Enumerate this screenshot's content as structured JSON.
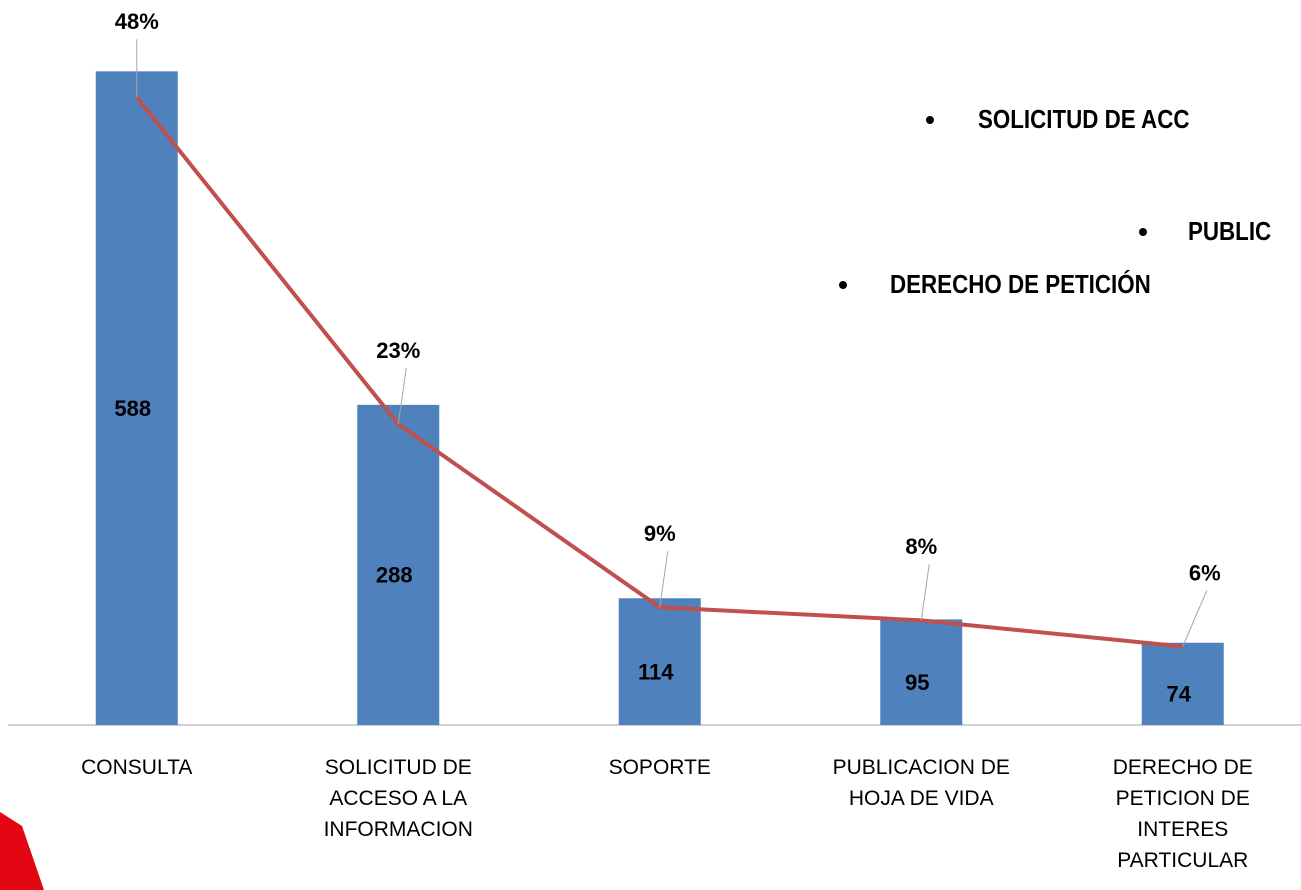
{
  "chart_data": {
    "type": "bar",
    "categories": [
      "CONSULTA",
      "SOLICITUD DE\nACCESO A LA\nINFORMACION",
      "SOPORTE",
      "PUBLICACION DE\nHOJA DE VIDA",
      "DERECHO DE\nPETICION DE\nINTERES\nPARTICULAR"
    ],
    "series": [
      {
        "type": "bar",
        "color": "#4f81bd",
        "values": [
          588,
          288,
          114,
          95,
          74
        ]
      },
      {
        "type": "line",
        "axis": "y2",
        "color": "#c0504d",
        "values": [
          48,
          23,
          9,
          8,
          6
        ],
        "value_labels": [
          "48%",
          "23%",
          "9%",
          "8%",
          "6%"
        ]
      }
    ],
    "ylim": [
      0,
      600
    ],
    "y2lim": [
      0,
      51
    ],
    "annotations": [
      "SOLICITUD DE ACC",
      "PUBLIC",
      "DERECHO DE PETICIÓN"
    ]
  }
}
